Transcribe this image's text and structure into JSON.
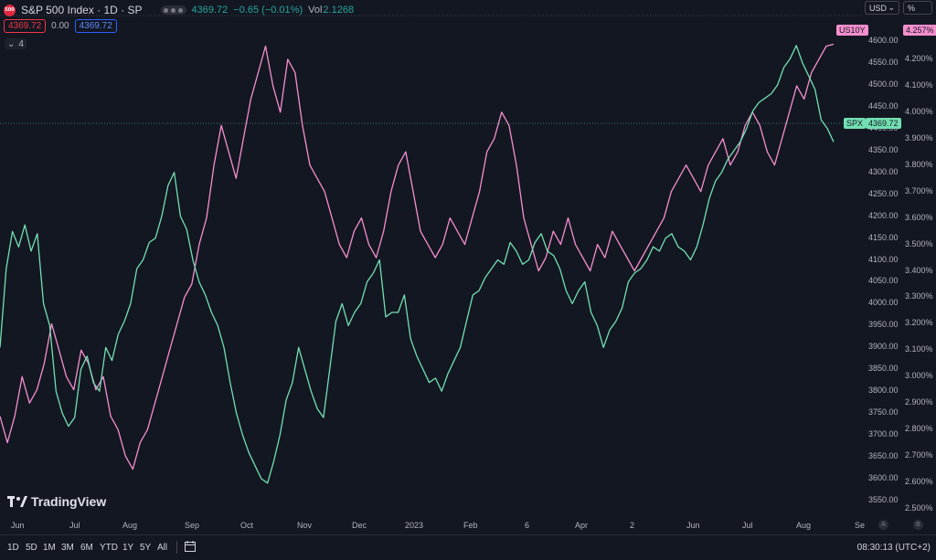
{
  "header": {
    "symbol_logo": "500",
    "title": "S&P 500 Index · 1D · SP",
    "price": "4369.72",
    "change": "−0.65 (−0.01%)",
    "vol_label": "Vol",
    "vol_value": "2.1268",
    "bid": "4369.72",
    "spread": "0.00",
    "ask": "4369.72",
    "indicator_count": "4",
    "currency": "USD",
    "scale_mode": "%"
  },
  "chart_data": {
    "type": "line",
    "x_tick_labels": [
      "Jun",
      "Jul",
      "Aug",
      "Sep",
      "Oct",
      "Nov",
      "Dec",
      "2023",
      "Feb",
      "6",
      "Apr",
      "2",
      "Jun",
      "Jul",
      "Aug",
      "Se"
    ],
    "series": [
      {
        "name": "SPX",
        "axis": "left-price",
        "color": "#72e0b2",
        "last_value": "4369.72"
      },
      {
        "name": "US10Y",
        "axis": "right-percent",
        "color": "#f58fce",
        "last_value": "4.257%"
      }
    ],
    "left_axis_ticks": [
      "4600.00",
      "4550.00",
      "4500.00",
      "4450.00",
      "4400.00",
      "4350.00",
      "4300.00",
      "4250.00",
      "4200.00",
      "4150.00",
      "4100.00",
      "4050.00",
      "4000.00",
      "3950.00",
      "3900.00",
      "3850.00",
      "3800.00",
      "3750.00",
      "3700.00",
      "3650.00",
      "3600.00",
      "3550.00"
    ],
    "right_axis_ticks": [
      "4.300%",
      "4.200%",
      "4.100%",
      "4.000%",
      "3.900%",
      "3.800%",
      "3.700%",
      "3.600%",
      "3.500%",
      "3.400%",
      "3.300%",
      "3.200%",
      "3.100%",
      "3.000%",
      "2.900%",
      "2.800%",
      "2.700%",
      "2.600%",
      "2.500%"
    ],
    "spx_values": [
      3900,
      4080,
      4165,
      4130,
      4180,
      4120,
      4160,
      4000,
      3950,
      3800,
      3750,
      3720,
      3740,
      3850,
      3880,
      3820,
      3800,
      3900,
      3870,
      3930,
      3960,
      4000,
      4080,
      4100,
      4140,
      4150,
      4200,
      4270,
      4300,
      4200,
      4170,
      4100,
      4050,
      4020,
      3980,
      3950,
      3900,
      3820,
      3750,
      3700,
      3660,
      3630,
      3600,
      3590,
      3640,
      3700,
      3780,
      3820,
      3900,
      3850,
      3800,
      3760,
      3740,
      3850,
      3960,
      4000,
      3950,
      3980,
      4000,
      4050,
      4070,
      4100,
      3970,
      3980,
      3980,
      4020,
      3920,
      3880,
      3850,
      3820,
      3830,
      3800,
      3840,
      3870,
      3900,
      3960,
      4020,
      4030,
      4060,
      4080,
      4100,
      4090,
      4140,
      4120,
      4090,
      4100,
      4140,
      4160,
      4120,
      4110,
      4080,
      4030,
      4000,
      4030,
      4050,
      3980,
      3950,
      3900,
      3940,
      3960,
      3990,
      4050,
      4070,
      4080,
      4100,
      4130,
      4120,
      4150,
      4160,
      4130,
      4120,
      4100,
      4130,
      4180,
      4240,
      4280,
      4300,
      4330,
      4350,
      4370,
      4400,
      4440,
      4460,
      4470,
      4480,
      4500,
      4540,
      4560,
      4590,
      4550,
      4520,
      4490,
      4420,
      4400,
      4369.72
    ],
    "us10y_values": [
      2.85,
      2.75,
      2.85,
      3.0,
      2.9,
      2.95,
      3.05,
      3.2,
      3.1,
      3.0,
      2.95,
      3.1,
      3.05,
      2.95,
      3.0,
      2.85,
      2.8,
      2.7,
      2.65,
      2.75,
      2.8,
      2.9,
      3.0,
      3.1,
      3.2,
      3.3,
      3.35,
      3.5,
      3.6,
      3.8,
      3.95,
      3.85,
      3.75,
      3.9,
      4.05,
      4.15,
      4.25,
      4.1,
      4.0,
      4.2,
      4.15,
      3.95,
      3.8,
      3.75,
      3.7,
      3.6,
      3.5,
      3.45,
      3.55,
      3.6,
      3.5,
      3.45,
      3.55,
      3.7,
      3.8,
      3.85,
      3.7,
      3.55,
      3.5,
      3.45,
      3.5,
      3.6,
      3.55,
      3.5,
      3.6,
      3.7,
      3.85,
      3.9,
      4.0,
      3.95,
      3.8,
      3.6,
      3.5,
      3.4,
      3.45,
      3.55,
      3.5,
      3.6,
      3.5,
      3.45,
      3.4,
      3.5,
      3.45,
      3.55,
      3.5,
      3.45,
      3.4,
      3.45,
      3.5,
      3.55,
      3.6,
      3.7,
      3.75,
      3.8,
      3.75,
      3.7,
      3.8,
      3.85,
      3.9,
      3.8,
      3.85,
      3.95,
      4.0,
      3.95,
      3.85,
      3.8,
      3.9,
      4.0,
      4.1,
      4.05,
      4.15,
      4.2,
      4.25,
      4.257
    ]
  },
  "bottom": {
    "ranges": [
      "1D",
      "5D",
      "1M",
      "3M",
      "6M",
      "YTD",
      "1Y",
      "5Y",
      "All"
    ],
    "clock": "08:30:13 (UTC+2)",
    "watermark": "TradingView",
    "circle_a": "A",
    "circle_b": "B"
  },
  "colors": {
    "background": "#131722",
    "spx_line": "#72e0b2",
    "us10y_line": "#f58fce",
    "negative": "#f23645",
    "positive": "#26a69a"
  }
}
